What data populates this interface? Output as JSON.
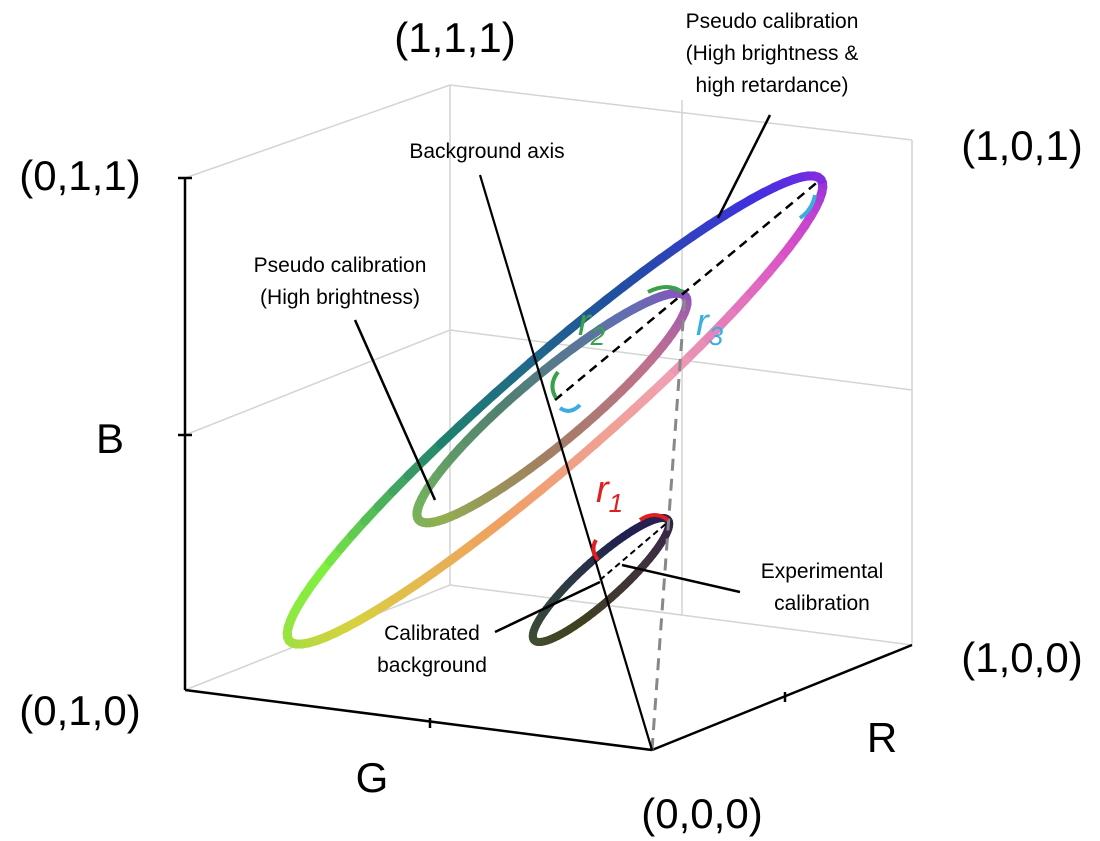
{
  "corners": {
    "c111": "(1,1,1)",
    "c011": "(0,1,1)",
    "c101": "(1,0,1)",
    "c010": "(0,1,0)",
    "c100": "(1,0,0)",
    "c000": "(0,0,0)"
  },
  "axes": {
    "b": "B",
    "g": "G",
    "r": "R"
  },
  "annotations": {
    "pseudo_high_retardance": [
      "Pseudo calibration",
      "(High brightness &",
      "high retardance)"
    ],
    "background_axis": "Background axis",
    "pseudo_high_brightness": [
      "Pseudo calibration",
      "(High brightness)"
    ],
    "experimental": [
      "Experimental",
      "calibration"
    ],
    "calibrated_background": [
      "Calibrated",
      "background"
    ]
  },
  "radii": {
    "r1": {
      "symbol": "r",
      "subscript": "1"
    },
    "r2": {
      "symbol": "r",
      "subscript": "2"
    },
    "r3": {
      "symbol": "r",
      "subscript": "3"
    }
  }
}
